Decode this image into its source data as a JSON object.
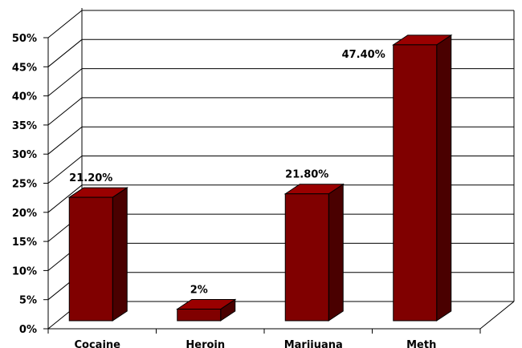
{
  "chart_data": {
    "type": "bar",
    "categories": [
      "Cocaine",
      "Heroin",
      "Marijuana",
      "Meth"
    ],
    "values": [
      21.2,
      2,
      21.8,
      47.4
    ],
    "data_labels": [
      "21.20%",
      "2%",
      "21.80%",
      "47.40%"
    ],
    "y_ticks": [
      "0%",
      "5%",
      "10%",
      "15%",
      "20%",
      "25%",
      "30%",
      "35%",
      "40%",
      "45%",
      "50%"
    ],
    "ylim": [
      0,
      50
    ],
    "grid": true,
    "legend": "none",
    "style": "3d-column",
    "colors": {
      "bar_front": "#800000",
      "bar_top": "#9a0000",
      "bar_side": "#4a0000",
      "outline": "#000000"
    }
  }
}
